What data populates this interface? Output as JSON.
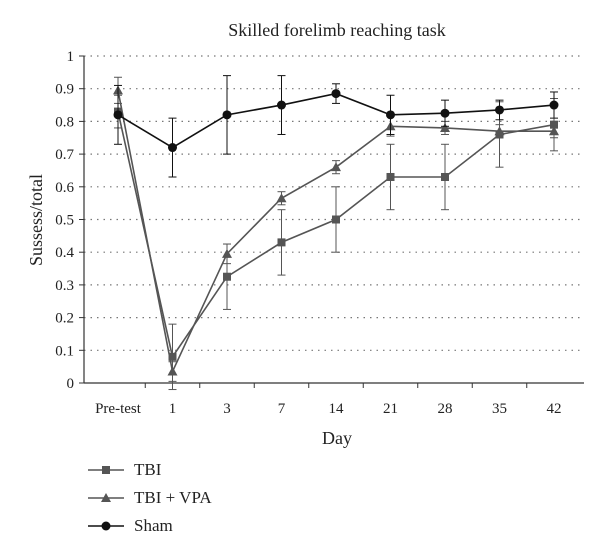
{
  "chart_data": {
    "type": "line",
    "title": "Skilled forelimb reaching task",
    "xlabel": "Day",
    "ylabel": "Sussess/total",
    "categories": [
      "Pre-test",
      "1",
      "3",
      "7",
      "14",
      "21",
      "28",
      "35",
      "42"
    ],
    "yticks": [
      "0",
      "0.1",
      "0.2",
      "0.3",
      "0.4",
      "0.5",
      "0.6",
      "0.7",
      "0.8",
      "0.9",
      "1"
    ],
    "ylim": [
      0,
      1
    ],
    "grid": "horizontal-dotted",
    "legend_position": "bottom-left",
    "series": [
      {
        "name": "TBI",
        "marker": "square",
        "color": "#555555",
        "values": [
          0.83,
          0.08,
          0.325,
          0.43,
          0.5,
          0.63,
          0.63,
          0.76,
          0.79
        ],
        "errors": [
          0.05,
          0.1,
          0.1,
          0.1,
          0.1,
          0.1,
          0.1,
          0.1,
          0.08
        ]
      },
      {
        "name": "TBI + VPA",
        "marker": "triangle",
        "color": "#555555",
        "values": [
          0.895,
          0.035,
          0.395,
          0.565,
          0.66,
          0.785,
          0.78,
          0.77,
          0.77
        ],
        "errors": [
          0.04,
          0.03,
          0.03,
          0.02,
          0.02,
          0.03,
          0.02,
          0.02,
          0.02
        ]
      },
      {
        "name": "Sham",
        "marker": "circle",
        "color": "#111111",
        "values": [
          0.82,
          0.72,
          0.82,
          0.85,
          0.885,
          0.82,
          0.825,
          0.835,
          0.85
        ],
        "errors": [
          0.09,
          0.09,
          0.12,
          0.09,
          0.03,
          0.06,
          0.04,
          0.03,
          0.04
        ]
      }
    ]
  }
}
